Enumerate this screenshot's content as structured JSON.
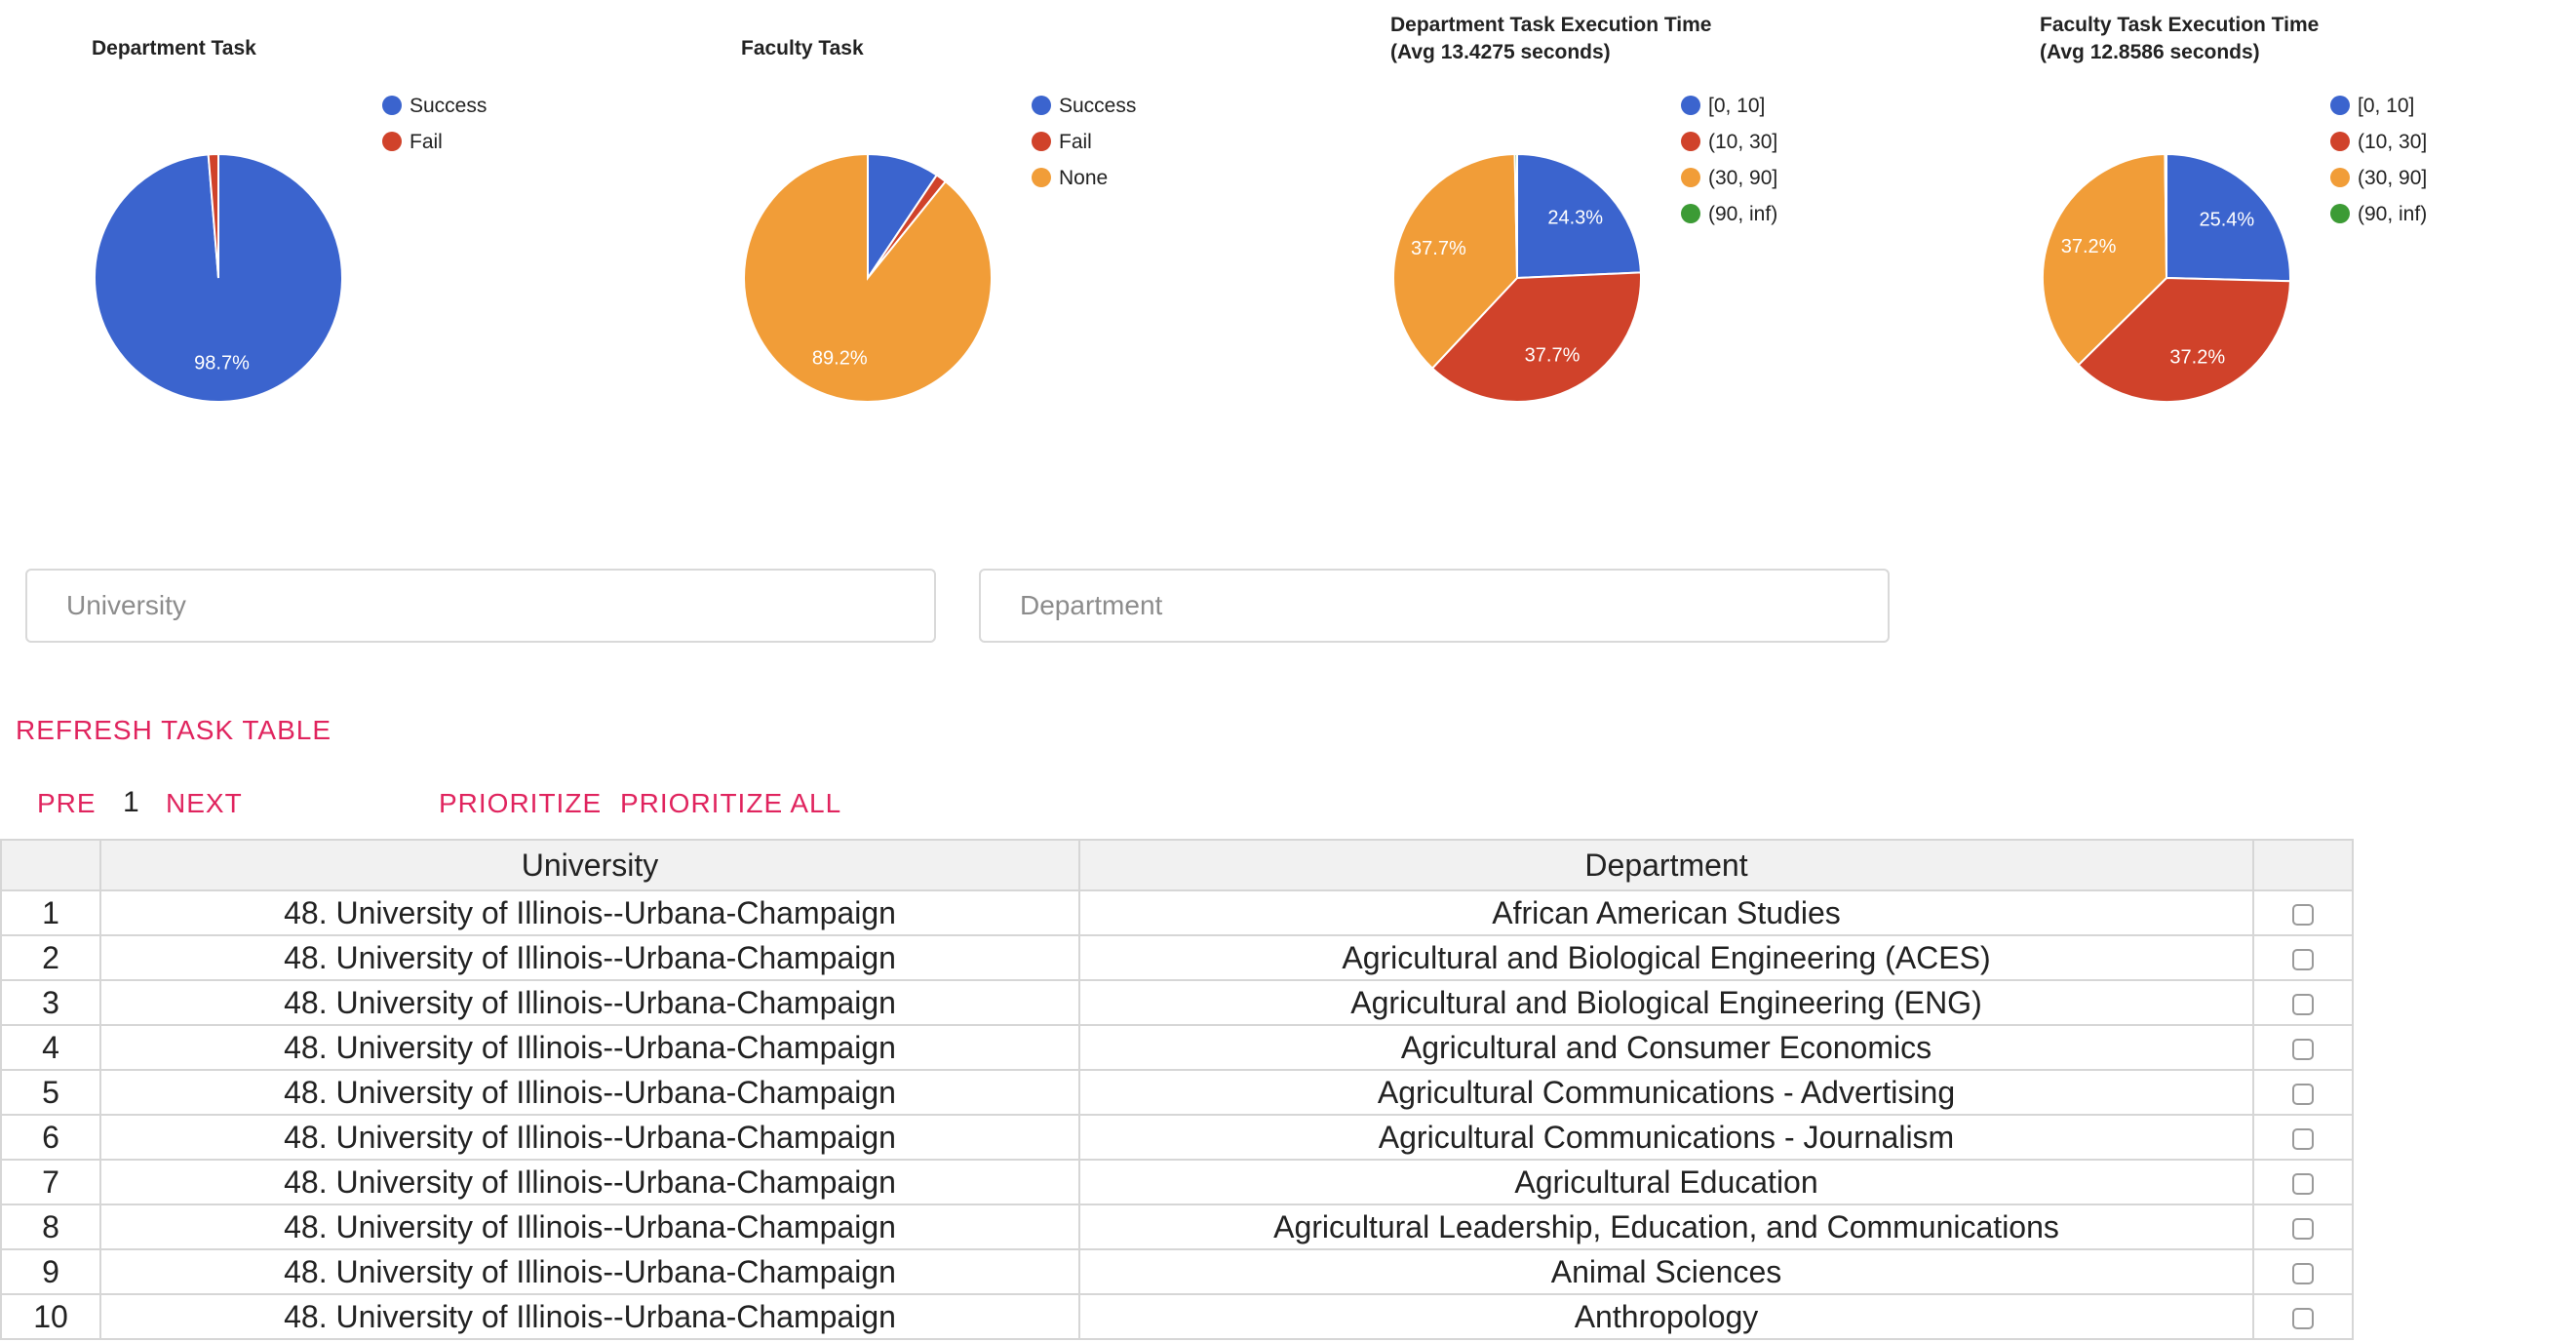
{
  "charts": [
    {
      "title_lines": [
        "Department Task"
      ],
      "legend": [
        {
          "label": "Success",
          "color": "#3b64ce"
        },
        {
          "label": "Fail",
          "color": "#d0422a"
        }
      ],
      "slices": [
        {
          "value": 98.7,
          "color": "#3b64ce",
          "label": "98.7%"
        },
        {
          "value": 1.3,
          "color": "#d0422a",
          "label": ""
        }
      ]
    },
    {
      "title_lines": [
        "Faculty Task"
      ],
      "legend": [
        {
          "label": "Success",
          "color": "#3b64ce"
        },
        {
          "label": "Fail",
          "color": "#d0422a"
        },
        {
          "label": "None",
          "color": "#f19d38"
        }
      ],
      "slices": [
        {
          "value": 9.4,
          "color": "#3b64ce",
          "label": ""
        },
        {
          "value": 1.4,
          "color": "#d0422a",
          "label": ""
        },
        {
          "value": 89.2,
          "color": "#f19d38",
          "label": "89.2%"
        }
      ]
    },
    {
      "title_lines": [
        "Department Task Execution Time",
        "(Avg 13.4275 seconds)"
      ],
      "legend": [
        {
          "label": "[0, 10]",
          "color": "#3b64ce"
        },
        {
          "label": "(10, 30]",
          "color": "#d0422a"
        },
        {
          "label": "(30, 90]",
          "color": "#f19d38"
        },
        {
          "label": "(90, inf)",
          "color": "#3c9b35"
        }
      ],
      "slices": [
        {
          "value": 24.3,
          "color": "#3b64ce",
          "label": "24.3%"
        },
        {
          "value": 37.7,
          "color": "#d0422a",
          "label": "37.7%"
        },
        {
          "value": 37.7,
          "color": "#f19d38",
          "label": "37.7%"
        },
        {
          "value": 0.3,
          "color": "#3c9b35",
          "label": ""
        }
      ]
    },
    {
      "title_lines": [
        "Faculty Task Execution Time",
        "(Avg 12.8586 seconds)"
      ],
      "legend": [
        {
          "label": "[0, 10]",
          "color": "#3b64ce"
        },
        {
          "label": "(10, 30]",
          "color": "#d0422a"
        },
        {
          "label": "(30, 90]",
          "color": "#f19d38"
        },
        {
          "label": "(90, inf)",
          "color": "#3c9b35"
        }
      ],
      "slices": [
        {
          "value": 25.4,
          "color": "#3b64ce",
          "label": "25.4%"
        },
        {
          "value": 37.2,
          "color": "#d0422a",
          "label": "37.2%"
        },
        {
          "value": 37.2,
          "color": "#f19d38",
          "label": "37.2%"
        },
        {
          "value": 0.2,
          "color": "#3c9b35",
          "label": ""
        }
      ]
    }
  ],
  "filters": {
    "university_placeholder": "University",
    "department_placeholder": "Department"
  },
  "actions": {
    "refresh": "REFRESH TASK TABLE",
    "pre": "PRE",
    "page": "1",
    "next": "NEXT",
    "prioritize": "PRIORITIZE",
    "prioritize_all": "PRIORITIZE ALL"
  },
  "table": {
    "headers": [
      "",
      "University",
      "Department",
      ""
    ],
    "rows": [
      {
        "idx": "1",
        "university": "48. University of Illinois--Urbana-Champaign",
        "department": "African American Studies"
      },
      {
        "idx": "2",
        "university": "48. University of Illinois--Urbana-Champaign",
        "department": "Agricultural and Biological Engineering (ACES)"
      },
      {
        "idx": "3",
        "university": "48. University of Illinois--Urbana-Champaign",
        "department": "Agricultural and Biological Engineering (ENG)"
      },
      {
        "idx": "4",
        "university": "48. University of Illinois--Urbana-Champaign",
        "department": "Agricultural and Consumer Economics"
      },
      {
        "idx": "5",
        "university": "48. University of Illinois--Urbana-Champaign",
        "department": "Agricultural Communications - Advertising"
      },
      {
        "idx": "6",
        "university": "48. University of Illinois--Urbana-Champaign",
        "department": "Agricultural Communications - Journalism"
      },
      {
        "idx": "7",
        "university": "48. University of Illinois--Urbana-Champaign",
        "department": "Agricultural Education"
      },
      {
        "idx": "8",
        "university": "48. University of Illinois--Urbana-Champaign",
        "department": "Agricultural Leadership, Education, and Communications"
      },
      {
        "idx": "9",
        "university": "48. University of Illinois--Urbana-Champaign",
        "department": "Animal Sciences"
      },
      {
        "idx": "10",
        "university": "48. University of Illinois--Urbana-Champaign",
        "department": "Anthropology"
      }
    ]
  }
}
